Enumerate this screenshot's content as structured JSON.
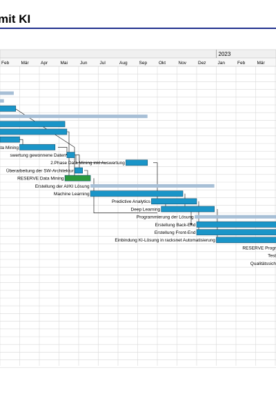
{
  "document": {
    "title": "mit KI"
  },
  "timeline": {
    "year_label": "2023",
    "months": [
      {
        "label": "Feb"
      },
      {
        "label": "Mär"
      },
      {
        "label": "Apr"
      },
      {
        "label": "Mai"
      },
      {
        "label": "Jun"
      },
      {
        "label": "Jul"
      },
      {
        "label": "Aug"
      },
      {
        "label": "Sep"
      },
      {
        "label": "Okt"
      },
      {
        "label": "Nov"
      },
      {
        "label": "Dez"
      },
      {
        "label": "Jan"
      },
      {
        "label": "Feb"
      },
      {
        "label": "Mär"
      }
    ]
  },
  "colors": {
    "task_bar": "#1a95c8",
    "summary_bar": "#a7bfd6",
    "reserve_bar": "#2a9a3c",
    "grid": "#d8d8d8",
    "title_rule": "#1e2e8c"
  },
  "tasks": [
    {
      "row": 6,
      "label": "rtung",
      "type": "task",
      "start": 0.0,
      "end": 1.0
    },
    {
      "row": 7,
      "label": "Data Mining",
      "type": "task",
      "start": 1.0,
      "end": 2.8
    },
    {
      "row": 8,
      "label": "swertung gewonnene Daten",
      "type": "task",
      "start": 3.4,
      "end": 3.8
    },
    {
      "row": 9,
      "label": "2.Phase Data Mining inkl Auswertung",
      "type": "task",
      "start": 6.4,
      "end": 7.5
    },
    {
      "row": 10,
      "label": "Überarbeitung der SW-Architektur",
      "type": "task",
      "start": 3.8,
      "end": 4.2
    },
    {
      "row": 11,
      "label": "RESERVE Data Mining",
      "type": "reserve",
      "start": 3.3,
      "end": 4.6
    },
    {
      "row": 12,
      "label": "Erstellung der AI/KI Lösung",
      "type": "summary",
      "start": 4.6,
      "end": 10.9
    },
    {
      "row": 13,
      "label": "Machine Learning",
      "type": "task",
      "start": 4.6,
      "end": 9.3
    },
    {
      "row": 14,
      "label": "Predictive Analytics",
      "type": "task",
      "start": 7.7,
      "end": 10.0
    },
    {
      "row": 15,
      "label": "Deep Learning",
      "type": "task",
      "start": 8.2,
      "end": 10.9
    },
    {
      "row": 16,
      "label": "Programmierung der Lösung",
      "type": "summary",
      "start": 9.9,
      "end": 14.5
    },
    {
      "row": 17,
      "label": "Erstellung Back-End",
      "type": "task",
      "start": 10.0,
      "end": 14.5
    },
    {
      "row": 18,
      "label": "Erstellung Front-End",
      "type": "task",
      "start": 10.0,
      "end": 14.5
    },
    {
      "row": 19,
      "label": "Einbindung KI-Lösung in racksnet Automatisierung",
      "type": "task",
      "start": 11.0,
      "end": 14.5
    },
    {
      "row": 20,
      "label": "RESERVE Progr",
      "type": "text",
      "start": 14.5,
      "end": 14.5
    },
    {
      "row": 21,
      "label": "Test",
      "type": "text",
      "start": 14.5,
      "end": 14.5
    },
    {
      "row": 22,
      "label": "Qualitätssich",
      "type": "text",
      "start": 14.5,
      "end": 14.5
    }
  ],
  "unlabeled_bars": [
    {
      "row": 0,
      "type": "summary",
      "start": -1.0,
      "end": 0.7
    },
    {
      "row": 1,
      "type": "summary",
      "start": -1.0,
      "end": 0.2
    },
    {
      "row": 2,
      "type": "task",
      "start": -1.0,
      "end": 0.8
    },
    {
      "row": 3,
      "type": "summary",
      "start": -1.0,
      "end": 7.5
    },
    {
      "row": 4,
      "type": "task",
      "start": -1.0,
      "end": 3.3
    },
    {
      "row": 5,
      "type": "task",
      "start": -1.0,
      "end": 3.4
    }
  ]
}
